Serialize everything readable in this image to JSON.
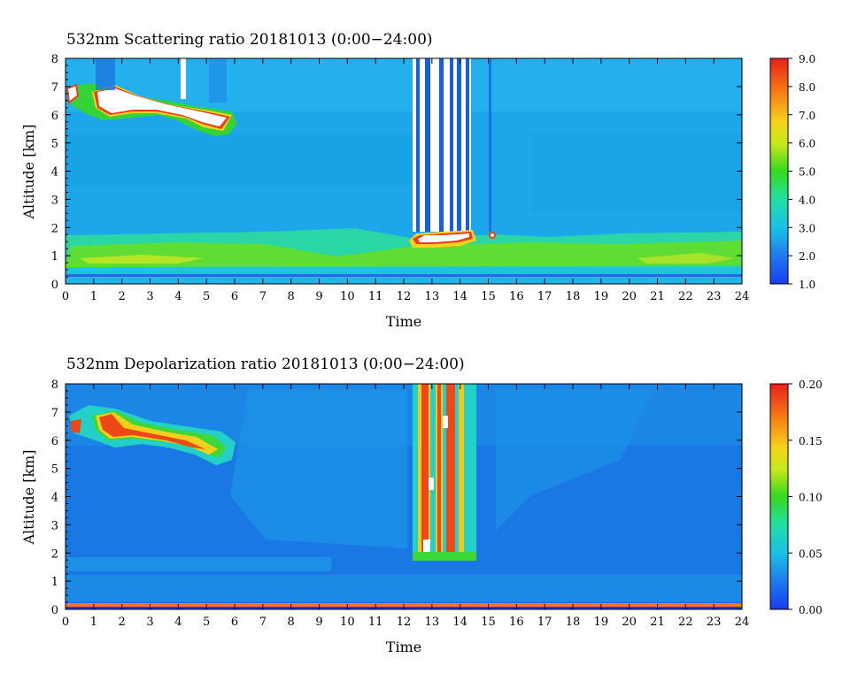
{
  "chart_data": [
    {
      "type": "heatmap",
      "title": "532nm Scattering ratio  20181013 (0:00−24:00)",
      "xlabel": "Time",
      "ylabel": "Altitude [km]",
      "xlim": [
        0,
        24
      ],
      "ylim": [
        0,
        8
      ],
      "x_ticks": [
        "0",
        "1",
        "2",
        "3",
        "4",
        "5",
        "6",
        "7",
        "8",
        "9",
        "10",
        "11",
        "12",
        "13",
        "14",
        "15",
        "16",
        "17",
        "18",
        "19",
        "20",
        "21",
        "22",
        "23",
        "24"
      ],
      "y_ticks": [
        "0",
        "1",
        "2",
        "3",
        "4",
        "5",
        "6",
        "7",
        "8"
      ],
      "colorbar": {
        "min": 1.0,
        "max": 9.0,
        "labels": [
          "1.0",
          "2.0",
          "3.0",
          "4.0",
          "5.0",
          "6.0",
          "7.0",
          "8.0",
          "9.0"
        ]
      },
      "background_value": 2.6,
      "features": [
        {
          "name": "boundary layer",
          "t": [
            0,
            24
          ],
          "alt": [
            0.4,
            1.85
          ],
          "value": 3.8
        },
        {
          "name": "cirrus cloud",
          "t": [
            0.1,
            5.9
          ],
          "alt": [
            5.6,
            7.2
          ],
          "value": 9.0
        },
        {
          "name": "low cloud",
          "t": [
            12.3,
            14.2
          ],
          "alt": [
            1.4,
            1.9
          ],
          "value": 9.0
        },
        {
          "name": "signal blocked",
          "t": [
            12.4,
            14.3
          ],
          "alt": [
            1.9,
            8.0
          ],
          "value": 1.0
        }
      ]
    },
    {
      "type": "heatmap",
      "title": "532nm Depolarization ratio  20181013 (0:00−24:00)",
      "xlabel": "Time",
      "ylabel": "Altitude [km]",
      "xlim": [
        0,
        24
      ],
      "ylim": [
        0,
        8
      ],
      "x_ticks": [
        "0",
        "1",
        "2",
        "3",
        "4",
        "5",
        "6",
        "7",
        "8",
        "9",
        "10",
        "11",
        "12",
        "13",
        "14",
        "15",
        "16",
        "17",
        "18",
        "19",
        "20",
        "21",
        "22",
        "23",
        "24"
      ],
      "y_ticks": [
        "0",
        "1",
        "2",
        "3",
        "4",
        "5",
        "6",
        "7",
        "8"
      ],
      "colorbar": {
        "min": 0.0,
        "max": 0.2,
        "labels": [
          "0.00",
          "0.05",
          "0.10",
          "0.15",
          "0.20"
        ]
      },
      "background_value": 0.03,
      "features": [
        {
          "name": "cirrus cloud",
          "t": [
            0.1,
            5.9
          ],
          "alt": [
            5.4,
            7.2
          ],
          "value": 0.16
        },
        {
          "name": "mixed-phase column",
          "t": [
            12.4,
            14.4
          ],
          "alt": [
            1.6,
            8.0
          ],
          "value": 0.2
        },
        {
          "name": "surface layer",
          "t": [
            0,
            24
          ],
          "alt": [
            0.0,
            0.2
          ],
          "value": 0.18
        }
      ]
    }
  ]
}
